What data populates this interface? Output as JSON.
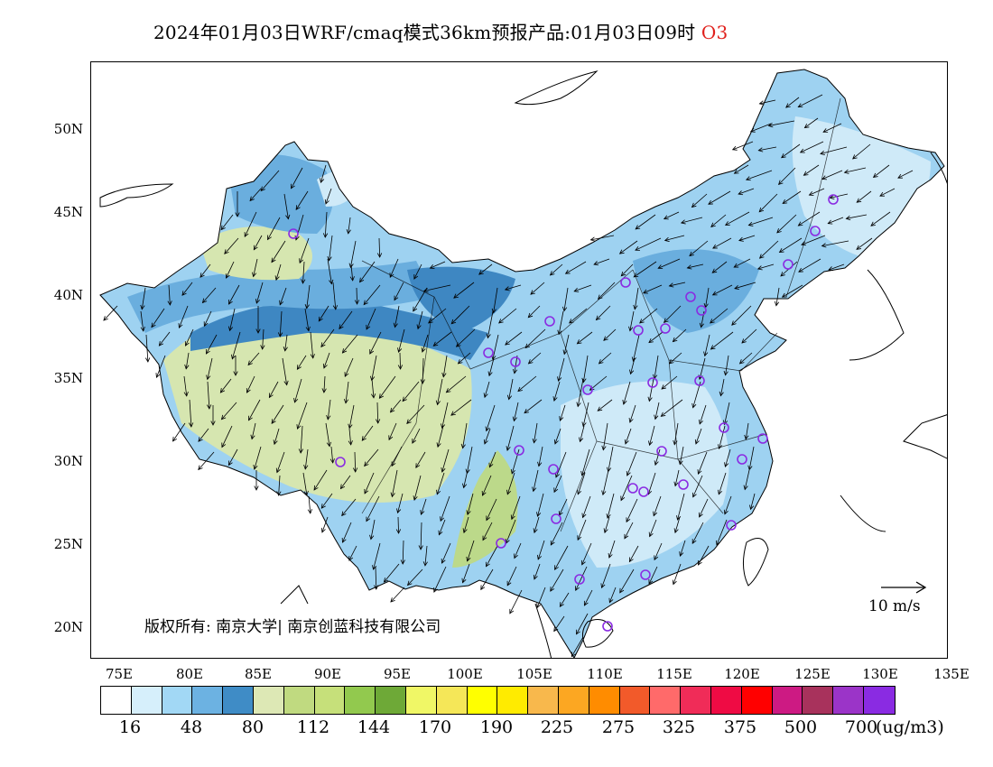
{
  "title": {
    "main": "2024年01月03日WRF/cmaq模式36km预报产品:01月03日09时",
    "species": "O3"
  },
  "map": {
    "lat_labels": [
      "50N",
      "45N",
      "40N",
      "35N",
      "30N",
      "25N",
      "20N"
    ],
    "lon_labels": [
      "75E",
      "80E",
      "85E",
      "90E",
      "95E",
      "100E",
      "105E",
      "110E",
      "115E",
      "120E",
      "125E",
      "130E",
      "135E"
    ],
    "copyright": "版权所有: 南京大学| 南京创蓝科技有限公司",
    "wind_reference": "10 m/s",
    "colors": {
      "frame": "#000000",
      "station_marker": "#8a2be2",
      "wind_vector": "#000000",
      "region_low": "#cfeaf8",
      "region_mid": "#9ed2f1",
      "region_high": "#6aaede",
      "region_higher": "#3e87c2",
      "region_veg": "#d6e6b0",
      "region_veg2": "#bcd98a"
    },
    "dominant_ranges": {
      "northeast": "16-48",
      "tibet_plateau": "80-144",
      "eastern_china": "16-80",
      "xinjiang": "48-112"
    }
  },
  "colorbar": {
    "unit": "(ug/m3)",
    "labels": [
      "16",
      "48",
      "80",
      "112",
      "144",
      "170",
      "190",
      "225",
      "275",
      "325",
      "375",
      "500",
      "700"
    ],
    "colors": [
      "#ffffff",
      "#d6effb",
      "#a2d8f5",
      "#6cb2e2",
      "#3f8cc6",
      "#dde8b5",
      "#c0da80",
      "#c6e07a",
      "#92c94e",
      "#6ea937",
      "#f0f766",
      "#f5e758",
      "#ffff00",
      "#ffeb00",
      "#f8b84c",
      "#fca722",
      "#ff8c00",
      "#f25a2a",
      "#ff6a6a",
      "#f02c58",
      "#ef0b44",
      "#ff0000",
      "#cd1a83",
      "#a8325c",
      "#9b34c8",
      "#8a2be2"
    ]
  }
}
